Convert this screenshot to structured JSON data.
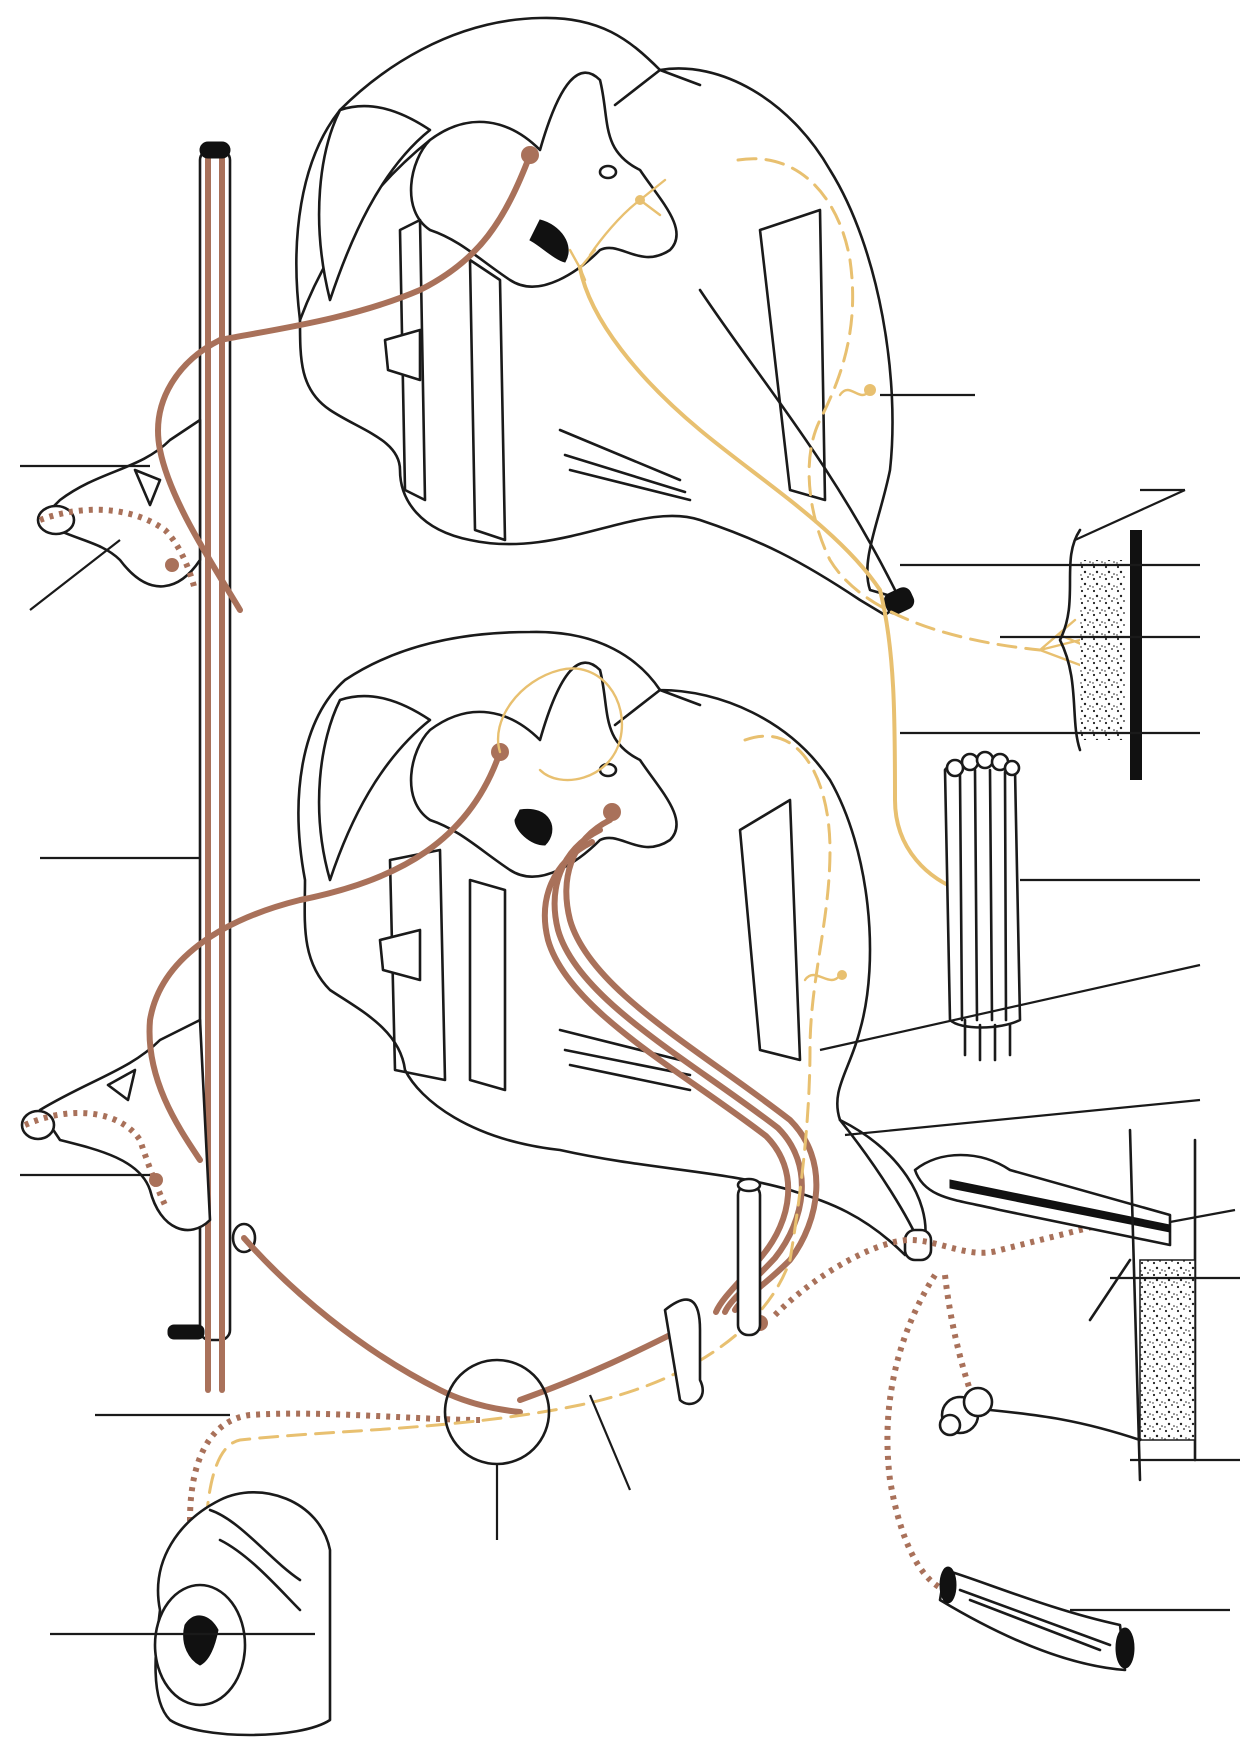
{
  "colors": {
    "sympathetic": "#a9715a",
    "sensory": "#e8c070",
    "outline": "#1a1a1a",
    "background": "#ffffff"
  },
  "labels": []
}
